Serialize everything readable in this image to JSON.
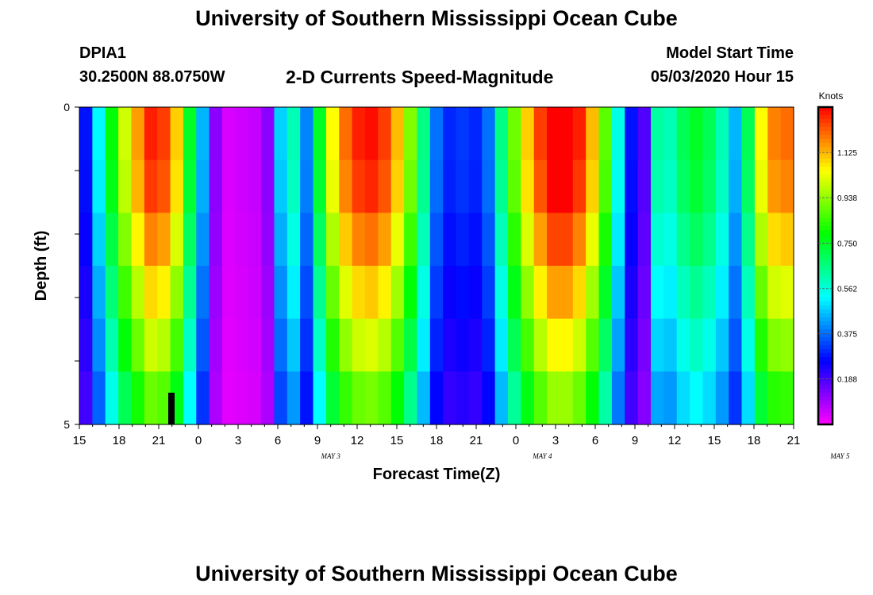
{
  "header": {
    "title": "University of Southern Mississippi Ocean Cube",
    "station": "DPIA1",
    "coords": "30.2500N 88.0750W",
    "product": "2-D Currents Speed-Magnitude",
    "model_start_label": "Model Start Time",
    "model_start_value": "05/03/2020 Hour 15"
  },
  "footer": {
    "title": "University of Southern Mississippi Ocean Cube"
  },
  "chart_data": {
    "type": "heatmap",
    "title": "2-D Currents Speed-Magnitude",
    "xlabel": "Forecast Time(Z)",
    "ylabel": "Depth (ft)",
    "yticks": [
      "0",
      "5"
    ],
    "ylim": [
      0,
      5
    ],
    "xticks": [
      "15",
      "18",
      "21",
      "0",
      "3",
      "6",
      "9",
      "12",
      "15",
      "18",
      "21",
      "0",
      "3",
      "6",
      "9",
      "12",
      "15",
      "18",
      "21"
    ],
    "date_labels": [
      {
        "label": "MAY 3",
        "at_hour": 19
      },
      {
        "label": "MAY 4",
        "at_hour": 35
      },
      {
        "label": "MAY 5",
        "at_hour": 57.5
      }
    ],
    "x_hours_range": [
      0,
      54
    ],
    "colorbar": {
      "label": "Knots",
      "ticks": [
        "0.188",
        "0.375",
        "0.562",
        "0.750",
        "0.938",
        "1.125"
      ],
      "range": [
        0,
        1.3125
      ]
    },
    "layers": 5,
    "profile": [
      0.28,
      0.52,
      0.78,
      1.0,
      1.15,
      1.28,
      1.25,
      1.1,
      0.75,
      0.45,
      0.12,
      0.04,
      0.05,
      0.06,
      0.12,
      0.48,
      0.6,
      0.4,
      0.75,
      1.05,
      1.2,
      1.28,
      1.3,
      1.25,
      1.12,
      0.92,
      0.65,
      0.38,
      0.3,
      0.32,
      0.3,
      0.38,
      0.65,
      0.9,
      1.1,
      1.25,
      1.35,
      1.35,
      1.28,
      1.12,
      0.88,
      0.55,
      0.28,
      0.18,
      0.62,
      0.6,
      0.7,
      0.75,
      0.7,
      0.6,
      0.45,
      0.7,
      1.05,
      1.18,
      1.2
    ],
    "depth_factors": [
      1.0,
      0.98,
      0.92,
      0.85,
      0.78,
      0.7
    ]
  }
}
